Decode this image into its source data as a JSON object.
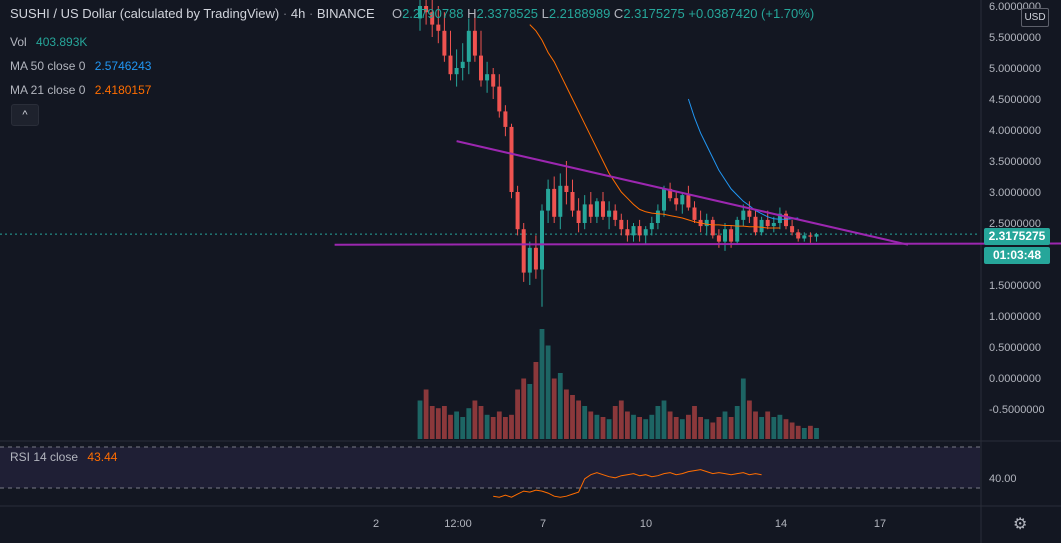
{
  "header": {
    "symbol": "SUSHI / US Dollar (calculated by TradingView)",
    "interval": "4h",
    "exchange": "BINANCE",
    "open_label": "O",
    "open": "2.2790788",
    "high_label": "H",
    "high": "2.3378525",
    "low_label": "L",
    "low": "2.2188989",
    "close_label": "C",
    "close": "2.3175275",
    "change": "+0.0387420 (+1.70%)"
  },
  "legend": {
    "vol_label": "Vol",
    "vol_value": "403.893K",
    "ma50_label": "MA 50 close 0",
    "ma50_value": "2.5746243",
    "ma21_label": "MA 21 close 0",
    "ma21_value": "2.4180157",
    "collapse_glyph": "^"
  },
  "currency_button": "USD",
  "price_tag": {
    "last_price": "2.3175275",
    "countdown": "01:03:48"
  },
  "rsi": {
    "label": "RSI 14 close",
    "value": "43.44",
    "axis_tick": "40.00"
  },
  "colors": {
    "background": "#131722",
    "up": "#26a69a",
    "down": "#ef5350",
    "ma50": "#2196f3",
    "ma21": "#ff6d00",
    "trendline": "#9c27b0",
    "rsi_line": "#ff6d00",
    "rsi_band": "#7e57c2"
  },
  "chart_data": {
    "type": "candlestick",
    "price_axis_ticks": [
      "6.0000000",
      "5.5000000",
      "5.0000000",
      "4.5000000",
      "4.0000000",
      "3.5000000",
      "3.0000000",
      "2.5000000",
      "2.0000000",
      "1.5000000",
      "1.0000000",
      "0.5000000",
      "0.0000000",
      "-0.5000000"
    ],
    "price_axis_values": [
      6.0,
      5.5,
      5.0,
      4.5,
      4.0,
      3.5,
      3.0,
      2.5,
      2.0,
      1.5,
      1.0,
      0.5,
      0.0,
      -0.5
    ],
    "x_axis_labels": [
      "2",
      "12:00",
      "7",
      "10",
      "14",
      "17"
    ],
    "candles_ohlc": [
      [
        5.8,
        6.2,
        5.6,
        6.0
      ],
      [
        6.0,
        6.3,
        5.7,
        5.9
      ],
      [
        5.9,
        6.2,
        5.5,
        5.7
      ],
      [
        5.7,
        6.0,
        5.4,
        5.6
      ],
      [
        5.6,
        5.9,
        5.1,
        5.2
      ],
      [
        5.2,
        5.6,
        4.8,
        4.9
      ],
      [
        4.9,
        5.3,
        4.7,
        5.0
      ],
      [
        5.0,
        5.4,
        4.8,
        5.1
      ],
      [
        5.1,
        5.8,
        4.9,
        5.6
      ],
      [
        5.6,
        5.9,
        5.1,
        5.2
      ],
      [
        5.2,
        5.6,
        4.7,
        4.8
      ],
      [
        4.8,
        5.1,
        4.6,
        4.9
      ],
      [
        4.9,
        5.0,
        4.5,
        4.7
      ],
      [
        4.7,
        4.9,
        4.2,
        4.3
      ],
      [
        4.3,
        4.4,
        3.9,
        4.05
      ],
      [
        4.05,
        4.1,
        2.9,
        3.0
      ],
      [
        3.0,
        3.1,
        2.3,
        2.4
      ],
      [
        2.4,
        2.5,
        1.55,
        1.7
      ],
      [
        1.7,
        2.2,
        1.5,
        2.1
      ],
      [
        2.1,
        2.3,
        1.6,
        1.75
      ],
      [
        1.75,
        2.8,
        1.15,
        2.7
      ],
      [
        2.7,
        3.2,
        2.5,
        3.05
      ],
      [
        3.05,
        3.25,
        2.5,
        2.6
      ],
      [
        2.6,
        3.3,
        2.4,
        3.1
      ],
      [
        3.1,
        3.5,
        2.8,
        3.0
      ],
      [
        3.0,
        3.2,
        2.6,
        2.7
      ],
      [
        2.7,
        2.9,
        2.35,
        2.5
      ],
      [
        2.5,
        2.95,
        2.4,
        2.8
      ],
      [
        2.8,
        3.0,
        2.5,
        2.6
      ],
      [
        2.6,
        2.9,
        2.5,
        2.85
      ],
      [
        2.85,
        3.0,
        2.55,
        2.6
      ],
      [
        2.6,
        2.85,
        2.4,
        2.7
      ],
      [
        2.7,
        2.8,
        2.45,
        2.55
      ],
      [
        2.55,
        2.65,
        2.3,
        2.4
      ],
      [
        2.4,
        2.55,
        2.2,
        2.3
      ],
      [
        2.3,
        2.5,
        2.2,
        2.45
      ],
      [
        2.45,
        2.55,
        2.2,
        2.3
      ],
      [
        2.3,
        2.45,
        2.15,
        2.4
      ],
      [
        2.4,
        2.6,
        2.3,
        2.5
      ],
      [
        2.5,
        2.8,
        2.4,
        2.7
      ],
      [
        2.7,
        3.1,
        2.6,
        3.05
      ],
      [
        3.05,
        3.15,
        2.85,
        2.9
      ],
      [
        2.9,
        3.0,
        2.7,
        2.8
      ],
      [
        2.8,
        3.0,
        2.65,
        2.95
      ],
      [
        2.95,
        3.1,
        2.7,
        2.75
      ],
      [
        2.75,
        2.85,
        2.5,
        2.55
      ],
      [
        2.55,
        2.7,
        2.35,
        2.45
      ],
      [
        2.45,
        2.65,
        2.3,
        2.55
      ],
      [
        2.55,
        2.6,
        2.25,
        2.3
      ],
      [
        2.3,
        2.4,
        2.1,
        2.2
      ],
      [
        2.2,
        2.5,
        2.05,
        2.4
      ],
      [
        2.4,
        2.45,
        2.1,
        2.2
      ],
      [
        2.2,
        2.6,
        2.15,
        2.55
      ],
      [
        2.55,
        2.8,
        2.45,
        2.7
      ],
      [
        2.7,
        2.85,
        2.5,
        2.6
      ],
      [
        2.6,
        2.7,
        2.3,
        2.35
      ],
      [
        2.35,
        2.6,
        2.3,
        2.55
      ],
      [
        2.55,
        2.7,
        2.4,
        2.45
      ],
      [
        2.45,
        2.6,
        2.35,
        2.5
      ],
      [
        2.5,
        2.75,
        2.4,
        2.65
      ],
      [
        2.65,
        2.7,
        2.4,
        2.45
      ],
      [
        2.45,
        2.55,
        2.3,
        2.35
      ],
      [
        2.35,
        2.4,
        2.2,
        2.25
      ],
      [
        2.25,
        2.35,
        2.2,
        2.3
      ],
      [
        2.3,
        2.35,
        2.18,
        2.28
      ],
      [
        2.28,
        2.34,
        2.2,
        2.32
      ]
    ],
    "volume_relative": [
      0.35,
      0.45,
      0.3,
      0.28,
      0.3,
      0.22,
      0.25,
      0.2,
      0.28,
      0.35,
      0.3,
      0.22,
      0.2,
      0.25,
      0.2,
      0.22,
      0.45,
      0.55,
      0.5,
      0.7,
      1.0,
      0.85,
      0.55,
      0.6,
      0.45,
      0.4,
      0.35,
      0.3,
      0.25,
      0.22,
      0.2,
      0.18,
      0.3,
      0.35,
      0.25,
      0.22,
      0.2,
      0.18,
      0.22,
      0.3,
      0.35,
      0.25,
      0.2,
      0.18,
      0.22,
      0.3,
      0.2,
      0.18,
      0.15,
      0.2,
      0.25,
      0.2,
      0.3,
      0.55,
      0.35,
      0.25,
      0.2,
      0.25,
      0.2,
      0.22,
      0.18,
      0.15,
      0.12,
      0.1,
      0.12,
      0.1
    ],
    "ma21": [
      5.7,
      5.6,
      5.45,
      5.25,
      5.1,
      4.9,
      4.7,
      4.5,
      4.3,
      4.1,
      3.9,
      3.7,
      3.5,
      3.3,
      3.15,
      3.0,
      2.9,
      2.8,
      2.72,
      2.68,
      2.66,
      2.65,
      2.64,
      2.62,
      2.6,
      2.58,
      2.55,
      2.52,
      2.5,
      2.48,
      2.47,
      2.47,
      2.46,
      2.46,
      2.45,
      2.45,
      2.44,
      2.44,
      2.43,
      2.42,
      2.42,
      2.42
    ],
    "ma21_start_index": 18,
    "ma50": [
      4.5,
      4.2,
      3.95,
      3.75,
      3.55,
      3.35,
      3.2,
      3.05,
      2.95,
      2.85,
      2.78,
      2.7,
      2.65,
      2.6,
      2.57,
      2.56,
      2.56,
      2.57,
      2.58
    ],
    "ma50_start_index": 44,
    "trendlines": [
      {
        "name": "descending",
        "from": [
          6,
          3.82
        ],
        "to": [
          80,
          2.15
        ]
      },
      {
        "name": "support",
        "from": [
          -14,
          2.15
        ],
        "to": [
          110,
          2.17
        ]
      }
    ],
    "rsi": [
      22,
      21,
      23,
      21,
      24,
      27,
      26,
      28,
      27,
      25,
      22,
      21,
      22,
      24,
      26,
      39,
      43,
      45,
      43,
      41,
      40,
      42,
      43,
      44,
      42,
      43,
      41,
      42,
      44,
      45,
      43,
      44,
      46,
      47,
      48,
      46,
      44,
      45,
      44,
      43,
      44,
      45,
      43,
      44,
      43
    ],
    "rsi_start_index": 12,
    "rsi_band": [
      30,
      70
    ]
  }
}
